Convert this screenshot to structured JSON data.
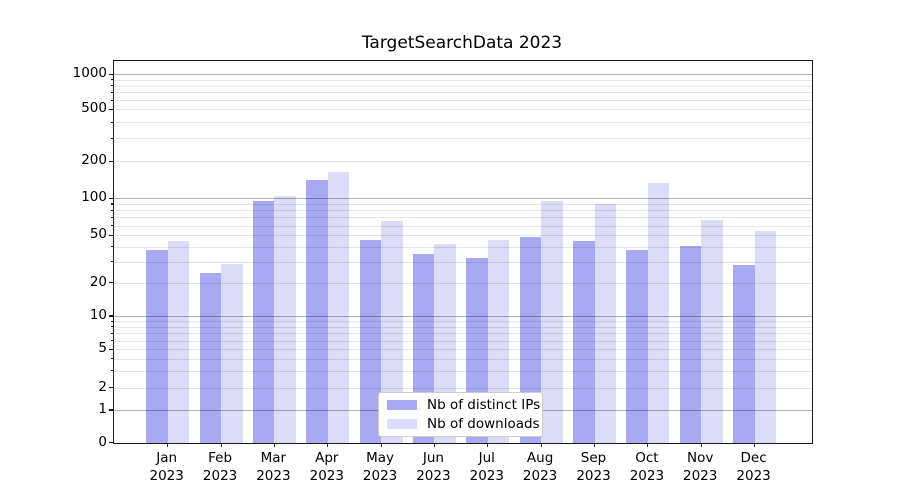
{
  "title": "TargetSearchData 2023",
  "chart_data": {
    "type": "bar",
    "title": "TargetSearchData 2023",
    "categories": [
      "Jan 2023",
      "Feb 2023",
      "Mar 2023",
      "Apr 2023",
      "May 2023",
      "Jun 2023",
      "Jul 2023",
      "Aug 2023",
      "Sep 2023",
      "Oct 2023",
      "Nov 2023",
      "Dec 2023"
    ],
    "x_labels": [
      {
        "month": "Jan",
        "year": "2023"
      },
      {
        "month": "Feb",
        "year": "2023"
      },
      {
        "month": "Mar",
        "year": "2023"
      },
      {
        "month": "Apr",
        "year": "2023"
      },
      {
        "month": "May",
        "year": "2023"
      },
      {
        "month": "Jun",
        "year": "2023"
      },
      {
        "month": "Jul",
        "year": "2023"
      },
      {
        "month": "Aug",
        "year": "2023"
      },
      {
        "month": "Sep",
        "year": "2023"
      },
      {
        "month": "Oct",
        "year": "2023"
      },
      {
        "month": "Nov",
        "year": "2023"
      },
      {
        "month": "Dec",
        "year": "2023"
      }
    ],
    "series": [
      {
        "name": "Nb of distinct IPs",
        "color": "#a9a9f3",
        "values": [
          38,
          24,
          95,
          140,
          46,
          35,
          32,
          48,
          45,
          38,
          41,
          28
        ]
      },
      {
        "name": "Nb of downloads",
        "color": "#dcdcf9",
        "values": [
          45,
          29,
          105,
          165,
          65,
          42,
          46,
          96,
          90,
          133,
          67,
          54
        ]
      }
    ],
    "yscale": "log with 1-2-5 labeled ticks, compressed linear segment from 0 to 1",
    "y_ticks": [
      0,
      1,
      2,
      5,
      10,
      20,
      50,
      100,
      200,
      500,
      1000
    ],
    "y_tick_labels": [
      "0",
      "1",
      "2",
      "5",
      "10",
      "20",
      "50",
      "100",
      "200",
      "500",
      "1000"
    ],
    "ylim": [
      0,
      1400
    ],
    "grid": "horizontal; darker lines at powers of 10, faint lines at other major and minor ticks",
    "legend_position": "lower center"
  },
  "legend": {
    "items": [
      {
        "label": "Nb of distinct IPs",
        "color": "#a9a9f3"
      },
      {
        "label": "Nb of downloads",
        "color": "#dcdcf9"
      }
    ]
  },
  "colors": {
    "ips_bar": "#a9a9f3",
    "downloads_bar": "#dcdcf9",
    "grid_major": "rgba(0,0,0,0.30)",
    "grid_minor": "rgba(0,0,0,0.10)",
    "spine": "#1a1a1a",
    "text": "#000000",
    "legend_border": "#cccccc"
  }
}
